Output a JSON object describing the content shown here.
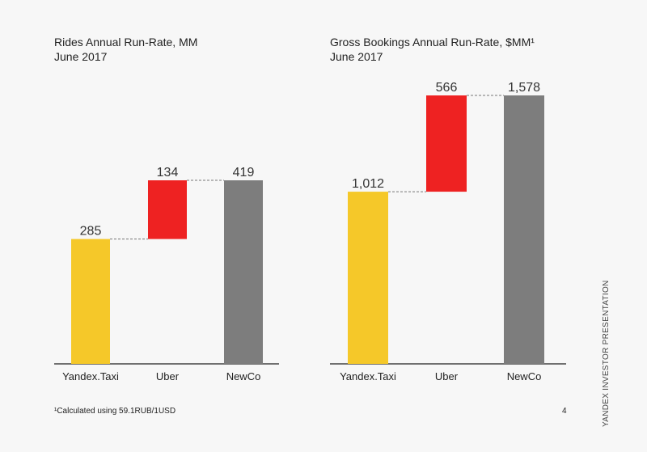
{
  "chart_data": [
    {
      "type": "bar",
      "subtype": "waterfall",
      "title": "Rides Annual Run-Rate, MM",
      "subtitle": "June 2017",
      "categories": [
        "Yandex.Taxi",
        "Uber",
        "NewCo"
      ],
      "values": [
        285,
        134,
        419
      ],
      "value_labels": [
        "285",
        "134",
        "419"
      ],
      "bases": [
        0,
        285,
        0
      ],
      "colors": [
        "#f5c829",
        "#ee2222",
        "#7d7d7d"
      ],
      "ylim": [
        0,
        419
      ]
    },
    {
      "type": "bar",
      "subtype": "waterfall",
      "title": "Gross Bookings Annual Run-Rate, $MM¹",
      "subtitle": "June 2017",
      "categories": [
        "Yandex.Taxi",
        "Uber",
        "NewCo"
      ],
      "values": [
        1012,
        566,
        1578
      ],
      "value_labels": [
        "1,012",
        "566",
        "1,578"
      ],
      "bases": [
        0,
        1012,
        0
      ],
      "colors": [
        "#f5c829",
        "#ee2222",
        "#7d7d7d"
      ],
      "ylim": [
        0,
        1578
      ]
    }
  ],
  "footnote": "¹Calculated using 59.1RUB/1USD",
  "page_number": "4",
  "side_text": "YANDEX INVESTOR PRESENTATION"
}
